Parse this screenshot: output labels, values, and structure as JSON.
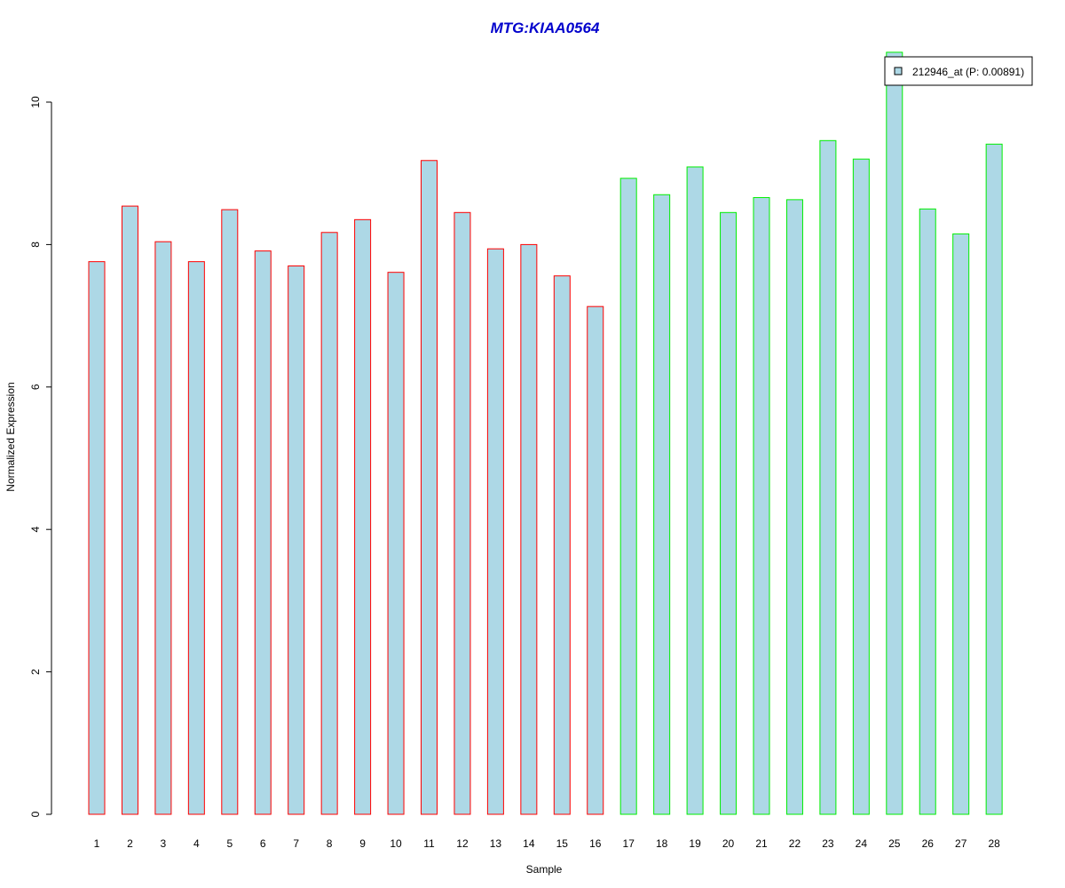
{
  "chart_data": {
    "type": "bar",
    "title": "MTG:KIAA0564",
    "xlabel": "Sample",
    "ylabel": "Normalized Expression",
    "ylim": [
      0,
      10.7
    ],
    "y_ticks": [
      0,
      2,
      4,
      6,
      8,
      10
    ],
    "categories": [
      "1",
      "2",
      "3",
      "4",
      "5",
      "6",
      "7",
      "8",
      "9",
      "10",
      "11",
      "12",
      "13",
      "14",
      "15",
      "16",
      "17",
      "18",
      "19",
      "20",
      "21",
      "22",
      "23",
      "24",
      "25",
      "26",
      "27",
      "28"
    ],
    "values": [
      7.76,
      8.54,
      8.04,
      7.76,
      8.49,
      7.91,
      7.7,
      8.17,
      8.35,
      7.61,
      9.18,
      8.45,
      7.94,
      8.0,
      7.56,
      7.13,
      8.93,
      8.7,
      9.09,
      8.45,
      8.66,
      8.63,
      9.46,
      9.2,
      10.7,
      8.5,
      8.15,
      9.41
    ],
    "groups": [
      "a",
      "a",
      "a",
      "a",
      "a",
      "a",
      "a",
      "a",
      "a",
      "a",
      "a",
      "a",
      "a",
      "a",
      "a",
      "a",
      "b",
      "b",
      "b",
      "b",
      "b",
      "b",
      "b",
      "b",
      "b",
      "b",
      "b",
      "b"
    ],
    "group_colors": {
      "a": "#ff0000",
      "b": "#00ee00"
    },
    "fill_color": "#add8e6",
    "title_color": "#0000cc",
    "legend": {
      "label": "212946_at (P: 0.00891)",
      "position": "top-right"
    },
    "grid": false
  }
}
